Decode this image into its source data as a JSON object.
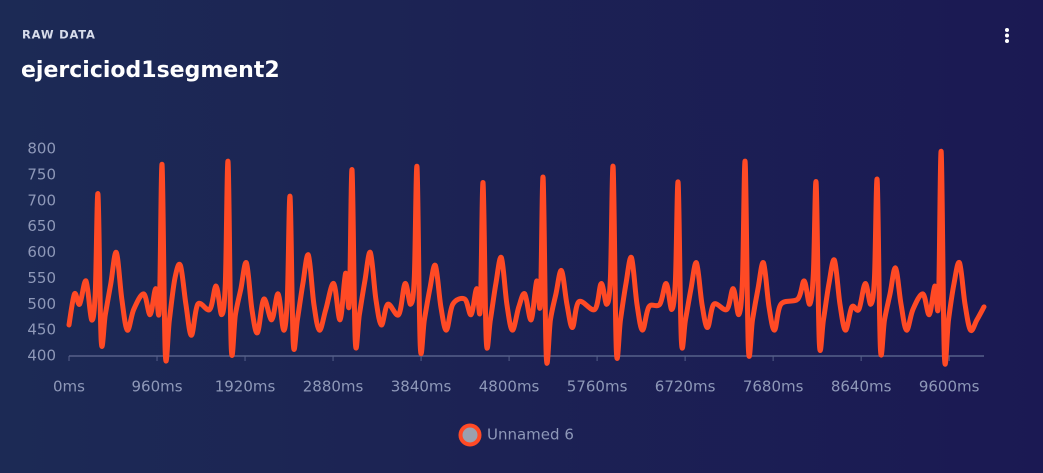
{
  "chart_data": {
    "type": "line",
    "kicker": "RAW DATA",
    "title": "ejerciciod1segment2",
    "x": [
      0,
      60,
      116,
      186,
      246,
      286,
      316,
      351,
      396,
      456,
      516,
      576,
      636,
      706,
      815,
      885,
      945,
      985,
      1015,
      1050,
      1095,
      1155,
      1215,
      1275,
      1335,
      1405,
      1535,
      1605,
      1665,
      1705,
      1735,
      1770,
      1815,
      1875,
      1935,
      1995,
      2055,
      2125,
      2211,
      2281,
      2341,
      2381,
      2411,
      2446,
      2491,
      2551,
      2611,
      2671,
      2731,
      2801,
      2887,
      2957,
      3017,
      3057,
      3087,
      3122,
      3167,
      3227,
      3287,
      3347,
      3407,
      3477,
      3596,
      3666,
      3726,
      3766,
      3796,
      3831,
      3876,
      3936,
      3996,
      4056,
      4116,
      4186,
      4316,
      4386,
      4446,
      4486,
      4516,
      4551,
      4596,
      4656,
      4716,
      4776,
      4836,
      4906,
      4971,
      5041,
      5101,
      5141,
      5171,
      5206,
      5251,
      5311,
      5371,
      5431,
      5491,
      5561,
      5735,
      5805,
      5865,
      5905,
      5935,
      5970,
      6015,
      6075,
      6135,
      6195,
      6255,
      6325,
      6444,
      6514,
      6574,
      6614,
      6644,
      6679,
      6724,
      6784,
      6844,
      6904,
      6964,
      7034,
      7175,
      7245,
      7305,
      7345,
      7375,
      7410,
      7455,
      7515,
      7575,
      7635,
      7695,
      7765,
      7949,
      8019,
      8079,
      8119,
      8149,
      8184,
      8229,
      8289,
      8349,
      8409,
      8469,
      8539,
      8615,
      8685,
      8745,
      8785,
      8815,
      8850,
      8895,
      8955,
      9015,
      9075,
      9135,
      9205,
      9313,
      9383,
      9443,
      9483,
      9513,
      9548,
      9593,
      9653,
      9713,
      9773,
      9833,
      9903,
      9980
    ],
    "series": [
      {
        "name": "Unnamed 6",
        "color": "#ff4a25",
        "values": [
          460,
          520,
          500,
          545,
          470,
          520,
          713,
          430,
          480,
          540,
          600,
          510,
          450,
          490,
          520,
          480,
          530,
          490,
          770,
          405,
          470,
          550,
          575,
          500,
          440,
          500,
          490,
          535,
          480,
          540,
          775,
          415,
          480,
          530,
          580,
          490,
          445,
          510,
          470,
          520,
          450,
          510,
          708,
          425,
          470,
          540,
          595,
          500,
          450,
          490,
          540,
          470,
          560,
          500,
          760,
          430,
          480,
          545,
          600,
          510,
          460,
          500,
          480,
          540,
          500,
          550,
          765,
          420,
          470,
          530,
          575,
          495,
          450,
          500,
          510,
          480,
          530,
          490,
          735,
          430,
          470,
          540,
          590,
          500,
          450,
          495,
          520,
          470,
          545,
          500,
          745,
          398,
          470,
          520,
          565,
          500,
          455,
          505,
          490,
          540,
          500,
          550,
          765,
          410,
          470,
          540,
          590,
          500,
          450,
          495,
          500,
          540,
          490,
          545,
          735,
          430,
          470,
          530,
          580,
          500,
          455,
          500,
          490,
          530,
          480,
          545,
          775,
          415,
          470,
          530,
          580,
          495,
          450,
          500,
          510,
          545,
          500,
          560,
          735,
          425,
          470,
          540,
          585,
          500,
          450,
          495,
          490,
          540,
          500,
          550,
          740,
          415,
          470,
          520,
          570,
          500,
          450,
          490,
          520,
          480,
          535,
          500,
          795,
          400,
          470,
          540,
          580,
          500,
          450,
          470,
          495
        ]
      }
    ],
    "xlim": [
      0,
      9980
    ],
    "ylim": [
      400,
      800
    ],
    "xticks": [
      {
        "value": 0,
        "label": "0ms"
      },
      {
        "value": 960,
        "label": "960ms"
      },
      {
        "value": 1920,
        "label": "1920ms"
      },
      {
        "value": 2880,
        "label": "2880ms"
      },
      {
        "value": 3840,
        "label": "3840ms"
      },
      {
        "value": 4800,
        "label": "4800ms"
      },
      {
        "value": 5760,
        "label": "5760ms"
      },
      {
        "value": 6720,
        "label": "6720ms"
      },
      {
        "value": 7680,
        "label": "7680ms"
      },
      {
        "value": 8640,
        "label": "8640ms"
      },
      {
        "value": 9600,
        "label": "9600ms"
      }
    ],
    "yticks": [
      400,
      450,
      500,
      550,
      600,
      650,
      700,
      750,
      800
    ],
    "grid": false
  }
}
